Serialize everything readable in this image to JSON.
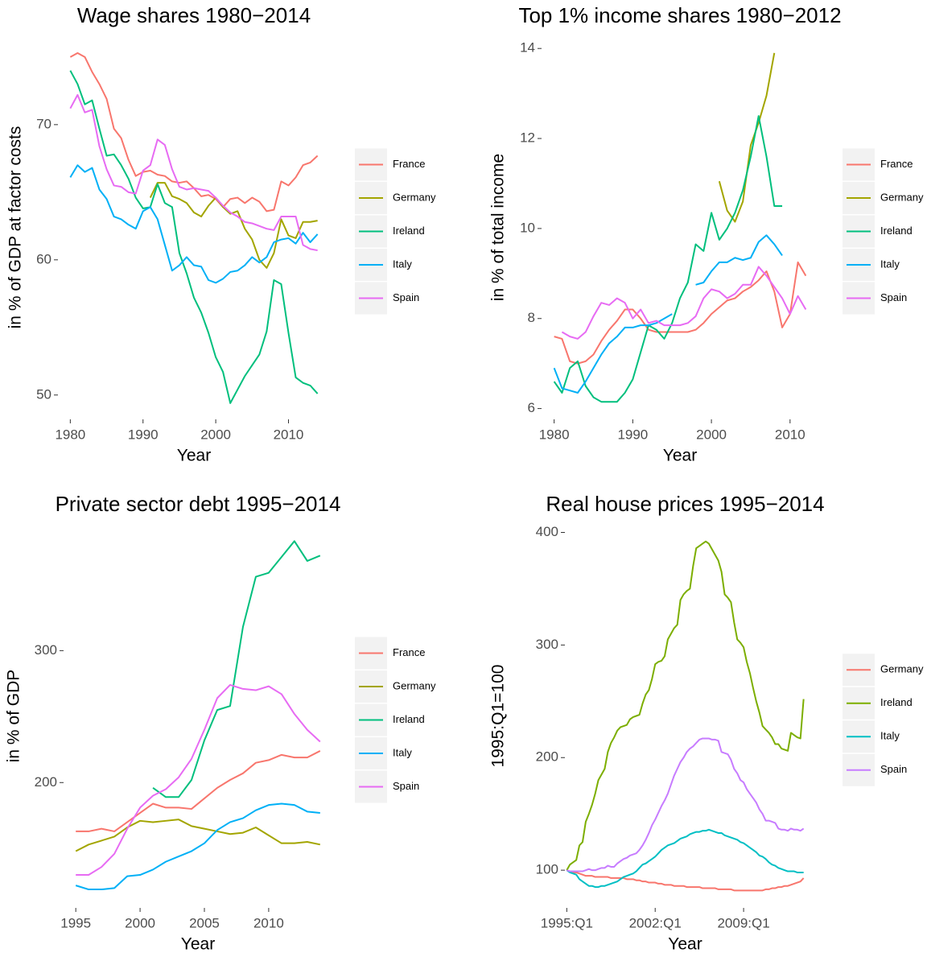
{
  "chart_data": [
    {
      "type": "line",
      "title": "Wage shares 1980−2014",
      "x_label": "Year",
      "y_label": "in % of GDP at factor costs",
      "x": [
        1980,
        1981,
        1982,
        1983,
        1984,
        1985,
        1986,
        1987,
        1988,
        1989,
        1990,
        1991,
        1992,
        1993,
        1994,
        1995,
        1996,
        1997,
        1998,
        1999,
        2000,
        2001,
        2002,
        2003,
        2004,
        2005,
        2006,
        2007,
        2008,
        2009,
        2010,
        2011,
        2012,
        2013,
        2014
      ],
      "xlim": [
        1978.3,
        2015.7
      ],
      "ylim": [
        48.2,
        76.6
      ],
      "xticks": [
        1980,
        1990,
        2000,
        2010
      ],
      "yticks": [
        50,
        60,
        70
      ],
      "legend": "right",
      "series": [
        {
          "name": "France",
          "color": "#F8766D",
          "values": [
            75.0,
            75.3,
            75.0,
            73.9,
            73.0,
            71.9,
            69.7,
            69.0,
            67.4,
            66.2,
            66.5,
            66.6,
            66.3,
            66.2,
            65.8,
            65.7,
            65.8,
            65.3,
            64.7,
            64.8,
            64.5,
            63.9,
            64.5,
            64.6,
            64.2,
            64.6,
            64.3,
            63.6,
            63.7,
            65.8,
            65.5,
            66.1,
            67.0,
            67.2,
            67.7
          ]
        },
        {
          "name": "Germany",
          "color": "#A3A500",
          "values": [
            null,
            null,
            null,
            null,
            null,
            null,
            null,
            null,
            null,
            null,
            null,
            64.6,
            65.7,
            65.7,
            64.7,
            64.5,
            64.2,
            63.5,
            63.2,
            64.0,
            64.6,
            63.9,
            63.4,
            63.6,
            62.3,
            61.5,
            60.0,
            59.4,
            60.5,
            63.0,
            61.8,
            61.6,
            62.8,
            62.8,
            62.9
          ]
        },
        {
          "name": "Ireland",
          "color": "#00BF7D",
          "values": [
            74.0,
            73.0,
            71.5,
            71.8,
            69.7,
            67.7,
            67.8,
            67.0,
            66.0,
            64.6,
            63.8,
            63.9,
            65.6,
            64.2,
            63.9,
            60.5,
            59.0,
            57.2,
            56.1,
            54.6,
            52.8,
            51.7,
            49.4,
            50.4,
            51.4,
            52.2,
            53.0,
            54.7,
            58.5,
            58.2,
            54.6,
            51.3,
            50.9,
            50.7,
            50.1
          ]
        },
        {
          "name": "Italy",
          "color": "#00B0F6",
          "values": [
            66.1,
            67.0,
            66.5,
            66.8,
            65.2,
            64.5,
            63.2,
            63.0,
            62.6,
            62.3,
            63.6,
            63.9,
            63.0,
            61.1,
            59.2,
            59.6,
            60.2,
            59.6,
            59.5,
            58.5,
            58.3,
            58.6,
            59.1,
            59.2,
            59.6,
            60.2,
            59.8,
            60.2,
            61.3,
            61.5,
            61.6,
            61.2,
            62.0,
            61.3,
            61.9
          ]
        },
        {
          "name": "Spain",
          "color": "#E76BF3",
          "values": [
            71.2,
            72.2,
            70.9,
            71.1,
            68.4,
            66.7,
            65.5,
            65.4,
            65.0,
            64.9,
            66.6,
            67.0,
            68.9,
            68.5,
            66.7,
            65.4,
            65.2,
            65.3,
            65.2,
            65.1,
            64.6,
            64.0,
            63.5,
            63.2,
            62.8,
            62.7,
            62.5,
            62.3,
            62.2,
            63.2,
            63.2,
            63.2,
            61.1,
            60.8,
            60.7
          ]
        }
      ]
    },
    {
      "type": "line",
      "title": "Top 1% income shares 1980−2012",
      "x_label": "Year",
      "y_label": "in % of total income",
      "x": [
        1980,
        1981,
        1982,
        1983,
        1984,
        1985,
        1986,
        1987,
        1988,
        1989,
        1990,
        1991,
        1992,
        1993,
        1994,
        1995,
        1996,
        1997,
        1998,
        1999,
        2000,
        2001,
        2002,
        2003,
        2004,
        2005,
        2006,
        2007,
        2008,
        2009,
        2010,
        2011,
        2012
      ],
      "xlim": [
        1978.4,
        2013.6
      ],
      "ylim": [
        5.76,
        14.29
      ],
      "xticks": [
        1980,
        1990,
        2000,
        2010
      ],
      "yticks": [
        6,
        8,
        10,
        12,
        14
      ],
      "legend": "right",
      "series": [
        {
          "name": "France",
          "color": "#F8766D",
          "values": [
            7.6,
            7.55,
            7.05,
            7.0,
            7.05,
            7.2,
            7.5,
            7.75,
            7.95,
            8.2,
            8.2,
            8.0,
            7.75,
            7.7,
            7.7,
            7.7,
            7.7,
            7.7,
            7.75,
            7.9,
            8.1,
            8.25,
            8.4,
            8.45,
            8.6,
            8.7,
            8.85,
            9.05,
            8.6,
            7.8,
            8.1,
            9.25,
            8.95
          ]
        },
        {
          "name": "Germany",
          "color": "#A3A500",
          "values": [
            null,
            null,
            null,
            null,
            null,
            null,
            null,
            null,
            null,
            null,
            null,
            null,
            null,
            null,
            null,
            null,
            null,
            null,
            null,
            null,
            null,
            11.05,
            10.4,
            10.15,
            10.6,
            11.85,
            12.35,
            12.95,
            13.9,
            null,
            null,
            null,
            null
          ]
        },
        {
          "name": "Ireland",
          "color": "#00BF7D",
          "values": [
            6.6,
            6.35,
            6.9,
            7.05,
            6.5,
            6.25,
            6.15,
            6.15,
            6.15,
            6.35,
            6.65,
            7.25,
            7.85,
            7.75,
            7.55,
            7.9,
            8.45,
            8.8,
            9.65,
            9.5,
            10.35,
            9.75,
            10.0,
            10.35,
            10.85,
            11.6,
            12.5,
            11.6,
            10.5,
            10.5,
            null,
            null,
            null
          ]
        },
        {
          "name": "Italy",
          "color": "#00B0F6",
          "values": [
            6.9,
            6.45,
            6.4,
            6.35,
            6.6,
            6.9,
            7.2,
            7.45,
            7.6,
            7.8,
            7.8,
            7.85,
            7.85,
            7.9,
            8.0,
            8.1,
            null,
            null,
            8.75,
            8.8,
            9.05,
            9.25,
            9.25,
            9.35,
            9.3,
            9.35,
            9.7,
            9.85,
            9.65,
            9.4,
            null,
            null,
            null
          ]
        },
        {
          "name": "Spain",
          "color": "#E76BF3",
          "values": [
            null,
            7.7,
            7.6,
            7.55,
            7.7,
            8.05,
            8.35,
            8.3,
            8.45,
            8.35,
            8.0,
            8.2,
            7.9,
            7.95,
            7.85,
            7.85,
            7.85,
            7.9,
            8.05,
            8.45,
            8.65,
            8.6,
            8.45,
            8.55,
            8.75,
            8.75,
            9.15,
            8.95,
            8.7,
            8.45,
            8.1,
            8.5,
            8.2
          ]
        }
      ]
    },
    {
      "type": "line",
      "title": "Private sector debt 1995−2014",
      "x_label": "Year",
      "y_label": "in % of GDP",
      "x": [
        1995,
        1996,
        1997,
        1998,
        1999,
        2000,
        2001,
        2002,
        2003,
        2004,
        2005,
        2006,
        2007,
        2008,
        2009,
        2010,
        2011,
        2012,
        2013,
        2014
      ],
      "xlim": [
        1994.05,
        2014.95
      ],
      "ylim": [
        105,
        396
      ],
      "xticks": [
        1995,
        2000,
        2005,
        2010
      ],
      "yticks": [
        200,
        300
      ],
      "legend": "right",
      "series": [
        {
          "name": "France",
          "color": "#F8766D",
          "values": [
            163,
            163,
            165,
            163,
            170,
            177,
            184,
            181,
            181,
            180,
            188,
            196,
            202,
            207,
            215,
            217,
            221,
            219,
            219,
            224
          ]
        },
        {
          "name": "Germany",
          "color": "#A3A500",
          "values": [
            148,
            153,
            156,
            159,
            166,
            171,
            170,
            171,
            172,
            167,
            165,
            163,
            161,
            162,
            166,
            160,
            154,
            154,
            155,
            153
          ]
        },
        {
          "name": "Ireland",
          "color": "#00BF7D",
          "values": [
            null,
            null,
            null,
            null,
            null,
            null,
            196,
            189,
            189,
            202,
            232,
            255,
            258,
            318,
            356,
            359,
            371,
            383,
            368,
            372
          ]
        },
        {
          "name": "Italy",
          "color": "#00B0F6",
          "values": [
            122,
            119,
            119,
            120,
            129,
            130,
            134,
            140,
            144,
            148,
            154,
            164,
            170,
            173,
            179,
            183,
            184,
            183,
            178,
            177
          ]
        },
        {
          "name": "Spain",
          "color": "#E76BF3",
          "values": [
            130,
            130,
            136,
            146,
            165,
            181,
            190,
            195,
            204,
            218,
            240,
            264,
            274,
            271,
            270,
            273,
            267,
            252,
            240,
            231
          ]
        }
      ]
    },
    {
      "type": "line",
      "title": "Real house prices 1995−2014",
      "x_label": "Year",
      "y_label": "1995:Q1=100",
      "categories": [
        "1995:Q1",
        null,
        null,
        null,
        null,
        null,
        null,
        null,
        null,
        null,
        null,
        null,
        null,
        null,
        null,
        null,
        null,
        null,
        null,
        null,
        null,
        null,
        null,
        null,
        null,
        null,
        null,
        null,
        "2002:Q1",
        null,
        null,
        null,
        null,
        null,
        null,
        null,
        null,
        null,
        null,
        null,
        null,
        null,
        null,
        null,
        null,
        null,
        null,
        null,
        null,
        null,
        null,
        null,
        null,
        null,
        null,
        null,
        "2009:Q1",
        null,
        null,
        null,
        null,
        null,
        null,
        null,
        null,
        null,
        null,
        null,
        null,
        null,
        null,
        null,
        null,
        null,
        null,
        null
      ],
      "ylim": [
        66.5,
        407.5
      ],
      "yticks": [
        100,
        200,
        300,
        400
      ],
      "legend": "right",
      "series": [
        {
          "name": "Germany",
          "color": "#F8766D",
          "values": [
            100,
            99,
            98,
            98,
            97,
            96,
            95,
            95,
            95,
            94,
            94,
            94,
            94,
            94,
            93,
            93,
            93,
            93,
            93,
            92,
            92,
            92,
            91,
            91,
            90,
            90,
            89,
            89,
            89,
            88,
            88,
            87,
            87,
            87,
            86,
            86,
            86,
            86,
            85,
            85,
            85,
            85,
            85,
            84,
            84,
            84,
            84,
            84,
            83,
            83,
            83,
            83,
            83,
            82,
            82,
            82,
            82,
            82,
            82,
            82,
            82,
            82,
            82,
            83,
            83,
            84,
            84,
            85,
            85,
            86,
            86,
            87,
            88,
            89,
            90,
            93
          ]
        },
        {
          "name": "Ireland",
          "color": "#7CAE00",
          "values": [
            100,
            105,
            107,
            109,
            122,
            125,
            143,
            150,
            158,
            168,
            180,
            185,
            190,
            205,
            213,
            218,
            224,
            227,
            228,
            229,
            234,
            236,
            237,
            238,
            248,
            256,
            260,
            270,
            283,
            285,
            286,
            290,
            305,
            310,
            315,
            318,
            340,
            345,
            348,
            350,
            370,
            386,
            388,
            390,
            392,
            390,
            385,
            380,
            375,
            365,
            345,
            342,
            338,
            320,
            305,
            302,
            298,
            285,
            275,
            262,
            250,
            240,
            228,
            225,
            222,
            218,
            212,
            212,
            208,
            207,
            206,
            222,
            220,
            218,
            217,
            252
          ]
        },
        {
          "name": "Italy",
          "color": "#00BFC4",
          "values": [
            100,
            98,
            97,
            96,
            92,
            90,
            88,
            86,
            86,
            85,
            85,
            86,
            86,
            87,
            88,
            89,
            90,
            92,
            94,
            95,
            96,
            97,
            99,
            102,
            105,
            106,
            108,
            110,
            112,
            115,
            118,
            120,
            122,
            123,
            124,
            126,
            128,
            129,
            130,
            132,
            133,
            134,
            134,
            135,
            135,
            136,
            135,
            134,
            133,
            133,
            131,
            130,
            129,
            128,
            127,
            125,
            124,
            122,
            120,
            118,
            116,
            113,
            112,
            110,
            107,
            105,
            104,
            102,
            101,
            100,
            99,
            99,
            99,
            98,
            98,
            98
          ]
        },
        {
          "name": "Spain",
          "color": "#C77CFF",
          "values": [
            100,
            99,
            99,
            99,
            99,
            99,
            100,
            101,
            100,
            100,
            101,
            102,
            102,
            104,
            103,
            103,
            106,
            108,
            110,
            111,
            113,
            114,
            115,
            118,
            122,
            127,
            133,
            140,
            145,
            151,
            157,
            162,
            168,
            176,
            184,
            190,
            196,
            200,
            205,
            208,
            210,
            213,
            216,
            217,
            217,
            217,
            216,
            216,
            215,
            205,
            204,
            203,
            198,
            190,
            186,
            180,
            178,
            172,
            168,
            164,
            160,
            154,
            150,
            144,
            144,
            143,
            142,
            137,
            136,
            136,
            135,
            137,
            136,
            136,
            135,
            137
          ]
        }
      ]
    }
  ]
}
